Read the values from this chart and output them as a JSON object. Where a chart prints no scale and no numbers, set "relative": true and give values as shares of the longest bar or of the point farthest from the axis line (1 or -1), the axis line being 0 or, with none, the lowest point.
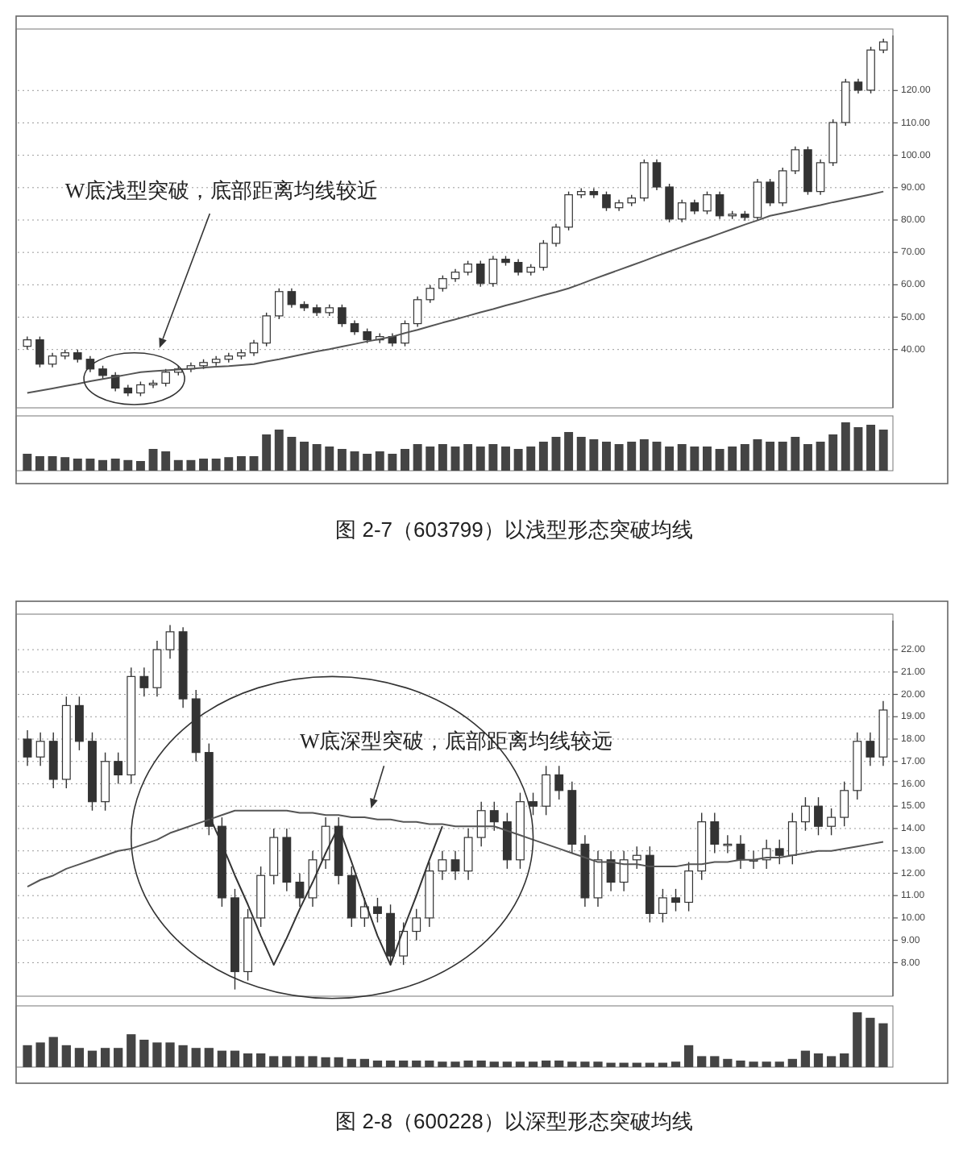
{
  "chart_data": [
    {
      "type": "candlestick",
      "title": "图 2-7（603799）以浅型形态突破均线",
      "categories": [
        null,
        null,
        null,
        null,
        null,
        null,
        null,
        null,
        null,
        null,
        null,
        null,
        null,
        null,
        null,
        null,
        null,
        null,
        null,
        null,
        null,
        null,
        null,
        null,
        null,
        null,
        null,
        null,
        null,
        null,
        null,
        null,
        null,
        null,
        null,
        null,
        null,
        null,
        null,
        null,
        null,
        null,
        null,
        null,
        null,
        null,
        null,
        null,
        null,
        null,
        null,
        null,
        null,
        null,
        null,
        null,
        null,
        null,
        null,
        null,
        null,
        null,
        null,
        null,
        null,
        null,
        null,
        null,
        null
      ],
      "ohlc": [
        [
          41.0,
          44.0,
          40.0,
          43.0
        ],
        [
          43.0,
          44.0,
          34.5,
          35.5
        ],
        [
          35.5,
          39.0,
          34.5,
          38.0
        ],
        [
          38.0,
          40.0,
          37.0,
          39.0
        ],
        [
          39.0,
          40.0,
          36.0,
          37.0
        ],
        [
          37.0,
          38.0,
          33.0,
          34.0
        ],
        [
          34.0,
          35.0,
          31.0,
          32.0
        ],
        [
          32.0,
          33.0,
          27.1,
          28.1
        ],
        [
          28.1,
          29.1,
          25.6,
          26.6
        ],
        [
          26.6,
          30.1,
          25.6,
          29.1
        ],
        [
          29.1,
          30.6,
          28.1,
          29.6
        ],
        [
          29.6,
          34.0,
          28.6,
          33.0
        ],
        [
          33.0,
          35.0,
          32.0,
          34.0
        ],
        [
          34.0,
          36.0,
          33.0,
          35.0
        ],
        [
          35.0,
          37.0,
          34.0,
          36.0
        ],
        [
          36.0,
          38.0,
          35.0,
          37.0
        ],
        [
          37.0,
          39.0,
          36.0,
          38.0
        ],
        [
          38.0,
          40.0,
          37.0,
          39.0
        ],
        [
          39.0,
          43.0,
          38.0,
          42.0
        ],
        [
          42.0,
          51.4,
          41.0,
          50.4
        ],
        [
          50.4,
          58.9,
          49.4,
          57.9
        ],
        [
          57.9,
          58.9,
          52.9,
          53.9
        ],
        [
          53.9,
          54.9,
          51.9,
          52.9
        ],
        [
          52.9,
          53.9,
          50.4,
          51.4
        ],
        [
          51.4,
          53.9,
          50.4,
          52.9
        ],
        [
          52.9,
          53.9,
          47.0,
          48.0
        ],
        [
          48.0,
          49.0,
          44.5,
          45.5
        ],
        [
          45.5,
          46.5,
          42.0,
          43.0
        ],
        [
          43.0,
          45.0,
          42.0,
          44.0
        ],
        [
          44.0,
          45.0,
          41.0,
          42.0
        ],
        [
          42.0,
          49.0,
          41.0,
          48.0
        ],
        [
          48.0,
          56.4,
          47.0,
          55.4
        ],
        [
          55.4,
          59.9,
          54.4,
          58.9
        ],
        [
          58.9,
          62.9,
          57.9,
          61.9
        ],
        [
          61.9,
          64.9,
          60.9,
          63.9
        ],
        [
          63.9,
          67.4,
          62.9,
          66.4
        ],
        [
          66.4,
          67.4,
          59.4,
          60.4
        ],
        [
          60.4,
          68.9,
          59.4,
          67.9
        ],
        [
          67.9,
          68.9,
          65.9,
          66.9
        ],
        [
          66.9,
          67.9,
          62.9,
          63.9
        ],
        [
          63.9,
          66.4,
          62.9,
          65.4
        ],
        [
          65.4,
          73.8,
          64.4,
          72.8
        ],
        [
          72.8,
          78.8,
          71.8,
          77.8
        ],
        [
          77.8,
          88.8,
          76.8,
          87.8
        ],
        [
          87.8,
          89.8,
          86.8,
          88.8
        ],
        [
          88.8,
          89.8,
          86.8,
          87.8
        ],
        [
          87.8,
          88.8,
          82.8,
          83.8
        ],
        [
          83.8,
          86.3,
          82.8,
          85.3
        ],
        [
          85.3,
          87.8,
          84.3,
          86.8
        ],
        [
          86.8,
          98.7,
          85.8,
          97.7
        ],
        [
          97.7,
          98.7,
          89.2,
          90.2
        ],
        [
          90.2,
          91.2,
          79.3,
          80.3
        ],
        [
          80.3,
          86.3,
          79.3,
          85.3
        ],
        [
          85.3,
          86.3,
          81.8,
          82.8
        ],
        [
          82.8,
          88.8,
          81.8,
          87.8
        ],
        [
          87.8,
          88.8,
          80.3,
          81.3
        ],
        [
          81.3,
          82.8,
          80.3,
          81.8
        ],
        [
          81.8,
          82.8,
          79.8,
          80.8
        ],
        [
          80.8,
          92.7,
          79.8,
          91.7
        ],
        [
          91.7,
          92.7,
          84.3,
          85.3
        ],
        [
          85.3,
          96.2,
          84.3,
          95.2
        ],
        [
          95.2,
          102.7,
          94.2,
          101.7
        ],
        [
          101.7,
          102.7,
          87.8,
          88.8
        ],
        [
          88.8,
          98.7,
          87.8,
          97.7
        ],
        [
          97.7,
          111.1,
          96.7,
          110.1
        ],
        [
          110.1,
          123.6,
          109.1,
          122.6
        ],
        [
          122.6,
          123.6,
          119.1,
          120.1
        ],
        [
          120.1,
          133.5,
          119.1,
          132.5
        ],
        [
          132.5,
          136.0,
          131.5,
          135.0
        ]
      ],
      "color": "#333333",
      "series": [
        {
          "type": "line",
          "color": "#555555",
          "values": [
            26.6,
            27.3,
            28.0,
            28.7,
            29.4,
            30.2,
            30.9,
            31.6,
            32.3,
            33.0,
            33.3,
            33.6,
            33.8,
            34.1,
            34.4,
            34.7,
            34.9,
            35.2,
            35.5,
            36.3,
            37.0,
            37.8,
            38.6,
            39.4,
            40.1,
            40.9,
            41.7,
            42.5,
            43.2,
            44.0,
            45.1,
            46.1,
            47.2,
            48.3,
            49.3,
            50.4,
            51.5,
            52.5,
            53.6,
            54.6,
            55.7,
            56.8,
            57.8,
            58.9,
            60.3,
            61.8,
            63.2,
            64.6,
            66.0,
            67.4,
            68.9,
            70.3,
            71.7,
            73.1,
            74.4,
            75.8,
            77.2,
            78.6,
            79.9,
            81.3,
            82.1,
            82.9,
            83.8,
            84.6,
            85.5,
            86.3,
            87.1,
            87.9,
            88.8
          ]
        }
      ],
      "ylim": [
        22,
        137
      ],
      "yticks": [
        {
          "value": 40,
          "label": "40.00"
        },
        {
          "value": 50,
          "label": "50.00"
        },
        {
          "value": 60,
          "label": "60.00"
        },
        {
          "value": 70,
          "label": "70.00"
        },
        {
          "value": 80,
          "label": "80.00"
        },
        {
          "value": 90,
          "label": "90.00"
        },
        {
          "value": 100,
          "label": "100.00"
        },
        {
          "value": 110,
          "label": "110.00"
        },
        {
          "value": 120,
          "label": "120.00"
        }
      ],
      "grid": "y",
      "tick_labels": "y",
      "annotations": [
        "W底浅型突破，底部距离均线较近"
      ]
    },
    {
      "type": "bar",
      "relative": true,
      "color": "#444444",
      "categories": [
        null,
        null,
        null,
        null,
        null,
        null,
        null,
        null,
        null,
        null,
        null,
        null,
        null,
        null,
        null,
        null,
        null,
        null,
        null,
        null,
        null,
        null,
        null,
        null,
        null,
        null,
        null,
        null,
        null,
        null,
        null,
        null,
        null,
        null,
        null,
        null,
        null,
        null,
        null,
        null,
        null,
        null,
        null,
        null,
        null,
        null,
        null,
        null,
        null,
        null,
        null,
        null,
        null,
        null,
        null,
        null,
        null,
        null,
        null,
        null,
        null,
        null,
        null,
        null,
        null,
        null,
        null,
        null,
        null
      ],
      "values": [
        0.35,
        0.3,
        0.3,
        0.28,
        0.25,
        0.25,
        0.22,
        0.25,
        0.22,
        0.2,
        0.45,
        0.4,
        0.22,
        0.22,
        0.25,
        0.25,
        0.28,
        0.3,
        0.3,
        0.75,
        0.85,
        0.7,
        0.6,
        0.55,
        0.5,
        0.45,
        0.4,
        0.35,
        0.4,
        0.35,
        0.45,
        0.55,
        0.5,
        0.55,
        0.5,
        0.55,
        0.5,
        0.55,
        0.5,
        0.45,
        0.5,
        0.6,
        0.7,
        0.8,
        0.7,
        0.65,
        0.6,
        0.55,
        0.6,
        0.65,
        0.6,
        0.5,
        0.55,
        0.5,
        0.5,
        0.45,
        0.5,
        0.55,
        0.65,
        0.6,
        0.6,
        0.7,
        0.55,
        0.6,
        0.75,
        1.0,
        0.9,
        0.95,
        0.85
      ]
    },
    {
      "type": "candlestick",
      "title": "图 2-8（600228）以深型形态突破均线",
      "categories": [
        null,
        null,
        null,
        null,
        null,
        null,
        null,
        null,
        null,
        null,
        null,
        null,
        null,
        null,
        null,
        null,
        null,
        null,
        null,
        null,
        null,
        null,
        null,
        null,
        null,
        null,
        null,
        null,
        null,
        null,
        null,
        null,
        null,
        null,
        null,
        null,
        null,
        null,
        null,
        null,
        null,
        null,
        null,
        null,
        null,
        null,
        null,
        null,
        null,
        null,
        null,
        null,
        null,
        null,
        null,
        null,
        null,
        null,
        null,
        null,
        null,
        null,
        null,
        null,
        null,
        null,
        null
      ],
      "ohlc": [
        [
          18.0,
          18.4,
          16.8,
          17.2
        ],
        [
          17.2,
          18.3,
          16.8,
          17.9
        ],
        [
          17.9,
          18.3,
          15.8,
          16.2
        ],
        [
          16.2,
          19.9,
          15.8,
          19.5
        ],
        [
          19.5,
          19.9,
          17.5,
          17.9
        ],
        [
          17.9,
          18.3,
          14.8,
          15.2
        ],
        [
          15.2,
          17.4,
          14.8,
          17.0
        ],
        [
          17.0,
          17.4,
          16.0,
          16.4
        ],
        [
          16.4,
          21.2,
          16.0,
          20.8
        ],
        [
          20.8,
          21.2,
          19.9,
          20.3
        ],
        [
          20.3,
          22.4,
          19.9,
          22.0
        ],
        [
          22.0,
          23.1,
          21.6,
          22.8
        ],
        [
          22.8,
          23.0,
          19.4,
          19.8
        ],
        [
          19.8,
          20.2,
          17.0,
          17.4
        ],
        [
          17.4,
          17.8,
          13.7,
          14.1
        ],
        [
          14.1,
          14.5,
          10.5,
          10.9
        ],
        [
          10.9,
          11.3,
          6.8,
          7.6
        ],
        [
          7.6,
          10.4,
          7.2,
          10.0
        ],
        [
          10.0,
          12.3,
          9.6,
          11.9
        ],
        [
          11.9,
          14.0,
          11.5,
          13.6
        ],
        [
          13.6,
          14.0,
          11.2,
          11.6
        ],
        [
          11.6,
          12.0,
          10.5,
          10.9
        ],
        [
          10.9,
          13.0,
          10.5,
          12.6
        ],
        [
          12.6,
          14.5,
          12.2,
          14.1
        ],
        [
          14.1,
          14.5,
          11.5,
          11.9
        ],
        [
          11.9,
          12.3,
          9.6,
          10.0
        ],
        [
          10.0,
          10.9,
          9.6,
          10.5
        ],
        [
          10.5,
          10.9,
          9.8,
          10.2
        ],
        [
          10.2,
          10.6,
          7.9,
          8.3
        ],
        [
          8.3,
          9.8,
          7.9,
          9.4
        ],
        [
          9.4,
          10.4,
          9.0,
          10.0
        ],
        [
          10.0,
          12.5,
          9.6,
          12.1
        ],
        [
          12.1,
          13.0,
          11.7,
          12.6
        ],
        [
          12.6,
          13.0,
          11.7,
          12.1
        ],
        [
          12.1,
          14.0,
          11.7,
          13.6
        ],
        [
          13.6,
          15.2,
          13.2,
          14.8
        ],
        [
          14.8,
          15.2,
          13.9,
          14.3
        ],
        [
          14.3,
          14.7,
          12.2,
          12.6
        ],
        [
          12.6,
          15.6,
          12.2,
          15.2
        ],
        [
          15.2,
          15.6,
          14.6,
          15.0
        ],
        [
          15.0,
          16.8,
          14.6,
          16.4
        ],
        [
          16.4,
          16.8,
          15.3,
          15.7
        ],
        [
          15.7,
          16.1,
          12.9,
          13.3
        ],
        [
          13.3,
          13.7,
          10.5,
          10.9
        ],
        [
          10.9,
          13.0,
          10.5,
          12.6
        ],
        [
          12.6,
          13.0,
          11.2,
          11.6
        ],
        [
          11.6,
          13.0,
          11.2,
          12.6
        ],
        [
          12.6,
          13.2,
          12.2,
          12.8
        ],
        [
          12.8,
          13.2,
          9.8,
          10.2
        ],
        [
          10.2,
          11.3,
          9.8,
          10.9
        ],
        [
          10.9,
          11.3,
          10.3,
          10.7
        ],
        [
          10.7,
          12.5,
          10.3,
          12.1
        ],
        [
          12.1,
          14.7,
          11.7,
          14.3
        ],
        [
          14.3,
          14.7,
          12.9,
          13.3
        ],
        [
          13.3,
          13.7,
          12.9,
          13.3
        ],
        [
          13.3,
          13.7,
          12.2,
          12.6
        ],
        [
          12.6,
          13.0,
          12.2,
          12.6
        ],
        [
          12.6,
          13.5,
          12.2,
          13.1
        ],
        [
          13.1,
          13.5,
          12.4,
          12.8
        ],
        [
          12.8,
          14.7,
          12.4,
          14.3
        ],
        [
          14.3,
          15.4,
          13.9,
          15.0
        ],
        [
          15.0,
          15.4,
          13.7,
          14.1
        ],
        [
          14.1,
          14.9,
          13.7,
          14.5
        ],
        [
          14.5,
          16.1,
          14.1,
          15.7
        ],
        [
          15.7,
          18.3,
          15.3,
          17.9
        ],
        [
          17.9,
          18.3,
          16.8,
          17.2
        ],
        [
          17.2,
          19.7,
          16.8,
          19.3
        ]
      ],
      "color": "#333333",
      "series": [
        {
          "type": "line",
          "color": "#555555",
          "values": [
            11.4,
            11.7,
            11.9,
            12.2,
            12.4,
            12.6,
            12.8,
            13.0,
            13.1,
            13.3,
            13.5,
            13.8,
            14.0,
            14.2,
            14.4,
            14.6,
            14.8,
            14.8,
            14.8,
            14.8,
            14.8,
            14.7,
            14.7,
            14.6,
            14.6,
            14.5,
            14.5,
            14.4,
            14.4,
            14.3,
            14.3,
            14.2,
            14.2,
            14.1,
            14.1,
            14.1,
            14.1,
            13.9,
            13.7,
            13.5,
            13.3,
            13.1,
            12.9,
            12.7,
            12.5,
            12.5,
            12.4,
            12.4,
            12.3,
            12.3,
            12.3,
            12.4,
            12.4,
            12.5,
            12.5,
            12.6,
            12.6,
            12.7,
            12.7,
            12.8,
            12.9,
            13.0,
            13.0,
            13.1,
            13.2,
            13.3,
            13.4
          ]
        },
        {
          "type": "line",
          "color": "#333333",
          "values": [
            null,
            null,
            null,
            null,
            null,
            null,
            null,
            null,
            null,
            null,
            null,
            null,
            null,
            null,
            14.6,
            13.3,
            11.9,
            10.6,
            9.2,
            7.9,
            9.1,
            10.4,
            11.6,
            12.9,
            14.1,
            12.5,
            10.8,
            9.2,
            7.9,
            9.5,
            11.0,
            12.6,
            14.1,
            null,
            null,
            null,
            null,
            null,
            null,
            null,
            null,
            null,
            null,
            null,
            null,
            null,
            null,
            null,
            null,
            null,
            null,
            null,
            null,
            null,
            null,
            null,
            null,
            null,
            null,
            null,
            null,
            null,
            null,
            null,
            null,
            null,
            null
          ]
        }
      ],
      "ylim": [
        6.5,
        23.3
      ],
      "yticks": [
        {
          "value": 8,
          "label": "8.00"
        },
        {
          "value": 9,
          "label": "9.00"
        },
        {
          "value": 10,
          "label": "10.00"
        },
        {
          "value": 11,
          "label": "11.00"
        },
        {
          "value": 12,
          "label": "12.00"
        },
        {
          "value": 13,
          "label": "13.00"
        },
        {
          "value": 14,
          "label": "14.00"
        },
        {
          "value": 15,
          "label": "15.00"
        },
        {
          "value": 16,
          "label": "16.00"
        },
        {
          "value": 17,
          "label": "17.00"
        },
        {
          "value": 18,
          "label": "18.00"
        },
        {
          "value": 19,
          "label": "19.00"
        },
        {
          "value": 20,
          "label": "20.00"
        },
        {
          "value": 21,
          "label": "21.00"
        },
        {
          "value": 22,
          "label": "22.00"
        }
      ],
      "grid": "y",
      "tick_labels": "y",
      "annotations": [
        "W底深型突破，底部距离均线较远"
      ]
    },
    {
      "type": "bar",
      "relative": true,
      "color": "#444444",
      "categories": [
        null,
        null,
        null,
        null,
        null,
        null,
        null,
        null,
        null,
        null,
        null,
        null,
        null,
        null,
        null,
        null,
        null,
        null,
        null,
        null,
        null,
        null,
        null,
        null,
        null,
        null,
        null,
        null,
        null,
        null,
        null,
        null,
        null,
        null,
        null,
        null,
        null,
        null,
        null,
        null,
        null,
        null,
        null,
        null,
        null,
        null,
        null,
        null,
        null,
        null,
        null,
        null,
        null,
        null,
        null,
        null,
        null,
        null,
        null,
        null,
        null,
        null,
        null,
        null,
        null,
        null,
        null
      ],
      "values": [
        0.4,
        0.45,
        0.55,
        0.4,
        0.35,
        0.3,
        0.35,
        0.35,
        0.6,
        0.5,
        0.45,
        0.45,
        0.4,
        0.35,
        0.35,
        0.3,
        0.3,
        0.25,
        0.25,
        0.2,
        0.2,
        0.2,
        0.2,
        0.18,
        0.18,
        0.15,
        0.15,
        0.12,
        0.12,
        0.12,
        0.12,
        0.12,
        0.1,
        0.1,
        0.12,
        0.12,
        0.1,
        0.1,
        0.1,
        0.1,
        0.12,
        0.12,
        0.1,
        0.1,
        0.1,
        0.08,
        0.08,
        0.08,
        0.08,
        0.08,
        0.1,
        0.4,
        0.2,
        0.2,
        0.15,
        0.12,
        0.1,
        0.1,
        0.1,
        0.15,
        0.3,
        0.25,
        0.2,
        0.25,
        1.0,
        0.9,
        0.8
      ]
    }
  ]
}
